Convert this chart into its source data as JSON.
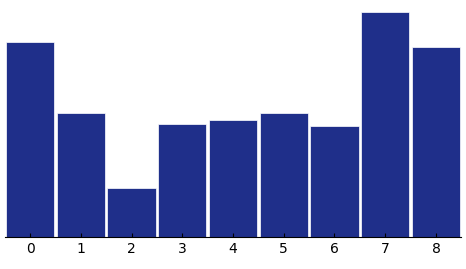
{
  "categories": [
    0,
    1,
    2,
    3,
    4,
    5,
    6,
    7,
    8
  ],
  "values": [
    220,
    140,
    55,
    128,
    132,
    140,
    125,
    255,
    215
  ],
  "bar_color": "#1F2F8A",
  "bar_edge_color": "#ffffff",
  "xlim": [
    -0.5,
    8.5
  ],
  "ylim": [
    0,
    265
  ],
  "tick_fontsize": 10,
  "background_color": "#ffffff",
  "bar_width": 0.95
}
